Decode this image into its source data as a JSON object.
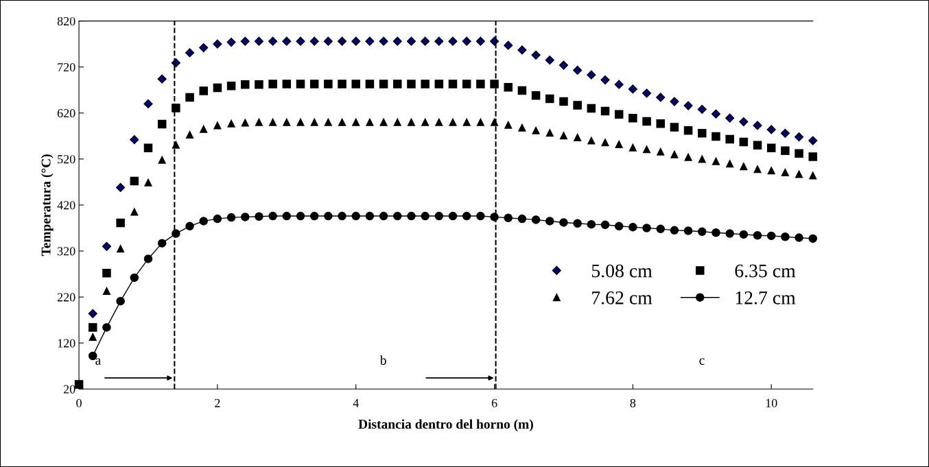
{
  "chart_data": {
    "type": "scatter",
    "xlabel": "Distancia dentro del horno (m)",
    "ylabel": "Temperatura (°C)",
    "x": [
      0,
      0.2,
      0.4,
      0.6,
      0.8,
      1.0,
      1.2,
      1.4,
      1.6,
      1.8,
      2.0,
      2.2,
      2.4,
      2.6,
      2.8,
      3.0,
      3.2,
      3.4,
      3.6,
      3.8,
      4.0,
      4.2,
      4.4,
      4.6,
      4.8,
      5.0,
      5.2,
      5.4,
      5.6,
      5.8,
      6.0,
      6.2,
      6.4,
      6.6,
      6.8,
      7.0,
      7.2,
      7.4,
      7.6,
      7.8,
      8.0,
      8.2,
      8.4,
      8.6,
      8.8,
      9.0,
      9.2,
      9.4,
      9.6,
      9.8,
      10.0,
      10.2,
      10.4,
      10.6
    ],
    "series": [
      {
        "name": "5.08 cm",
        "color": "#00007f",
        "marker": "diamond",
        "line_style": "none",
        "values": [
          null,
          184,
          330,
          458,
          562,
          640,
          694,
          729,
          751,
          762,
          770,
          774,
          776,
          776,
          776,
          776,
          776,
          776,
          776,
          776,
          776,
          776,
          776,
          776,
          776,
          776,
          776,
          776,
          776,
          776,
          776,
          767,
          757,
          746,
          735,
          724,
          713,
          703,
          692,
          682,
          672,
          663,
          654,
          645,
          636,
          628,
          618,
          609,
          601,
          593,
          584,
          576,
          568,
          560
        ]
      },
      {
        "name": "6.35 cm",
        "color": "#000000",
        "marker": "square",
        "line_style": "none",
        "values": [
          30,
          154,
          272,
          381,
          472,
          544,
          596,
          631,
          654,
          668,
          675,
          679,
          682,
          682,
          683,
          683,
          683,
          683,
          683,
          683,
          683,
          683,
          683,
          683,
          683,
          683,
          683,
          683,
          683,
          683,
          683,
          676,
          669,
          658,
          651,
          645,
          637,
          630,
          624,
          617,
          609,
          602,
          597,
          589,
          582,
          576,
          569,
          563,
          557,
          550,
          544,
          538,
          532,
          525
        ]
      },
      {
        "name": "7.62 cm",
        "color": "#000000",
        "marker": "triangle",
        "line_style": "none",
        "values": [
          null,
          133,
          233,
          325,
          405,
          469,
          518,
          551,
          573,
          585,
          593,
          597,
          599,
          600,
          600,
          600,
          600,
          600,
          600,
          600,
          600,
          600,
          600,
          600,
          600,
          600,
          600,
          600,
          600,
          600,
          600,
          594,
          588,
          582,
          577,
          571,
          567,
          560,
          556,
          552,
          545,
          541,
          536,
          530,
          524,
          520,
          515,
          510,
          504,
          498,
          495,
          491,
          487,
          484
        ]
      },
      {
        "name": "12.7 cm",
        "type": "line",
        "color": "#000000",
        "marker": "circle",
        "line_style": "solid",
        "values": [
          null,
          92,
          154,
          211,
          262,
          303,
          337,
          358,
          374,
          385,
          390,
          393,
          394,
          395,
          396,
          396,
          396,
          396,
          396,
          396,
          396,
          396,
          396,
          396,
          396,
          396,
          396,
          396,
          396,
          396,
          394,
          392,
          390,
          388,
          385,
          382,
          380,
          378,
          377,
          374,
          372,
          370,
          368,
          365,
          364,
          362,
          360,
          358,
          356,
          354,
          353,
          351,
          349,
          347
        ]
      }
    ],
    "xlim": [
      0,
      10.6
    ],
    "xticks": [
      0,
      2,
      4,
      6,
      8,
      10
    ],
    "ylim": [
      20,
      820
    ],
    "yticks": [
      20,
      120,
      220,
      320,
      420,
      520,
      620,
      720,
      820
    ],
    "ref_lines": [
      {
        "axis": "x",
        "value": 1.38,
        "color": "#000000",
        "line_style": "dashed"
      },
      {
        "axis": "x",
        "value": 6.02,
        "color": "#000000",
        "line_style": "dashed"
      }
    ],
    "annotations": [
      "a",
      "b",
      "c"
    ],
    "legend": "center right",
    "grid": false
  }
}
